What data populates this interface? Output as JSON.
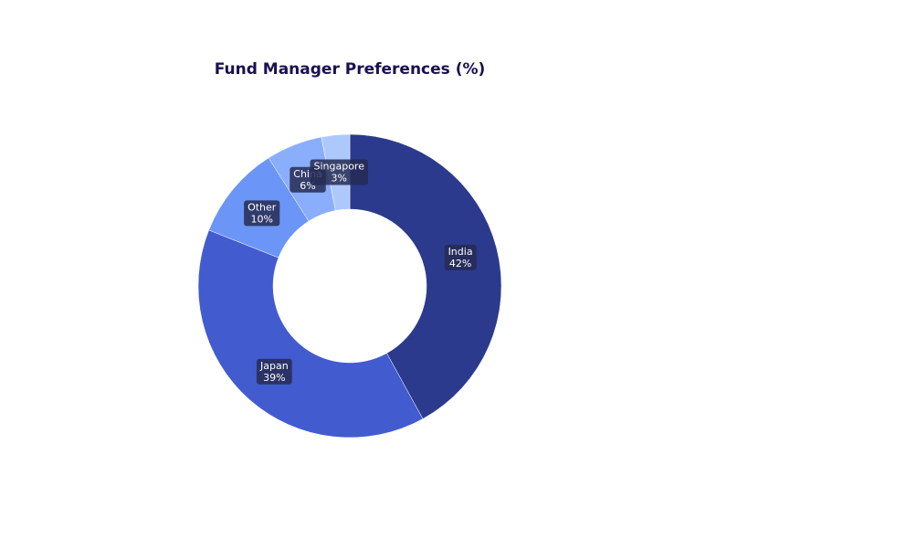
{
  "chart_data": {
    "type": "pie",
    "title": "Fund Manager Preferences (%)",
    "categories": [
      "India",
      "Japan",
      "Other",
      "China",
      "Singapore"
    ],
    "values": [
      42,
      39,
      10,
      6,
      3
    ],
    "value_labels": [
      "42%",
      "39%",
      "10%",
      "6%",
      "3%"
    ],
    "colors": [
      "#2b3a8c",
      "#425bcf",
      "#6b96f7",
      "#8aaefc",
      "#adc8fd"
    ],
    "hole": true
  }
}
